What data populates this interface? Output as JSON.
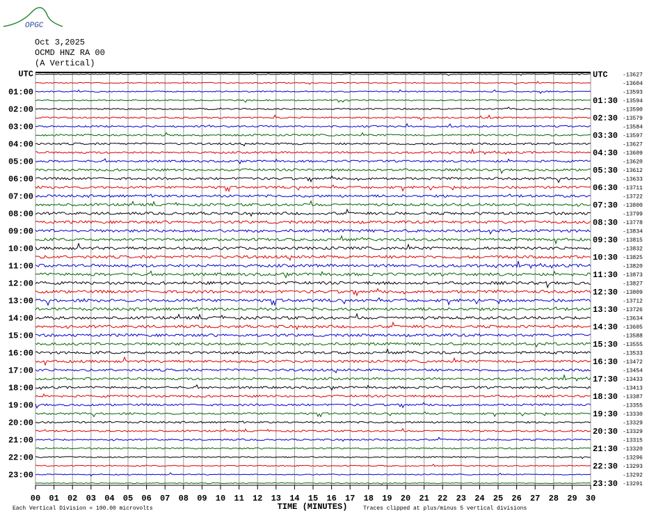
{
  "chart_data": {
    "type": "helicorder",
    "logo": "OPGC",
    "date": "Oct 3,2025",
    "station": "OCMD HNZ RA 00",
    "component": "(A Vertical)",
    "xlabel": "TIME (MINUTES)",
    "scale_note": "Each Vertical Division =  100.00 microvolts",
    "clip_note": "Traces clipped at plus/minus 5 vertical divisions",
    "xlim": [
      0,
      30
    ],
    "xticks": [
      {
        "value": 0,
        "label": "00"
      },
      {
        "value": 1,
        "label": "01"
      },
      {
        "value": 2,
        "label": "02"
      },
      {
        "value": 3,
        "label": "03"
      },
      {
        "value": 4,
        "label": "04"
      },
      {
        "value": 5,
        "label": "05"
      },
      {
        "value": 6,
        "label": "06"
      },
      {
        "value": 7,
        "label": "07"
      },
      {
        "value": 8,
        "label": "08"
      },
      {
        "value": 9,
        "label": "09"
      },
      10,
      11,
      12,
      13,
      14,
      15,
      16,
      17,
      18,
      19,
      20,
      21,
      22,
      23,
      24,
      25,
      26,
      27,
      28,
      29,
      30
    ],
    "trace_colors": [
      "#000000",
      "#e00000",
      "#0000d0",
      "#006400"
    ],
    "left_labels": [
      "UTC",
      null,
      "01:00",
      null,
      "02:00",
      null,
      "03:00",
      null,
      "04:00",
      null,
      "05:00",
      null,
      "06:00",
      null,
      "07:00",
      null,
      "08:00",
      null,
      "09:00",
      null,
      "10:00",
      null,
      "11:00",
      null,
      "12:00",
      null,
      "13:00",
      null,
      "14:00",
      null,
      "15:00",
      null,
      "16:00",
      null,
      "17:00",
      null,
      "18:00",
      null,
      "19:00",
      null,
      "20:00",
      null,
      "21:00",
      null,
      "22:00",
      null,
      "23:00",
      null
    ],
    "right_labels": [
      "UTC",
      null,
      null,
      "01:30",
      null,
      "02:30",
      null,
      "03:30",
      null,
      "04:30",
      null,
      "05:30",
      null,
      "06:30",
      null,
      "07:30",
      null,
      "08:30",
      null,
      "09:30",
      null,
      "10:30",
      null,
      "11:30",
      null,
      "12:30",
      null,
      "13:30",
      null,
      "14:30",
      null,
      "15:30",
      null,
      "16:30",
      null,
      "17:30",
      null,
      "18:30",
      null,
      "19:30",
      null,
      "20:30",
      null,
      "21:30",
      null,
      "22:30",
      null,
      "23:30"
    ],
    "offsets": [
      -13627,
      -13604,
      -13593,
      -13594,
      -13590,
      -13579,
      -13584,
      -13597,
      -13627,
      -13609,
      -13620,
      -13612,
      -13633,
      -13711,
      -13722,
      -13800,
      -13799,
      -13778,
      -13834,
      -13815,
      -13832,
      -13825,
      -13820,
      -13873,
      -13827,
      -13809,
      -13712,
      -13726,
      -13634,
      -13605,
      -13588,
      -13555,
      -13533,
      -13472,
      -13454,
      -13433,
      -13413,
      -13387,
      -13355,
      -13330,
      -13329,
      -13329,
      -13315,
      -13320,
      -13296,
      -13293,
      -13292,
      -13291
    ]
  }
}
